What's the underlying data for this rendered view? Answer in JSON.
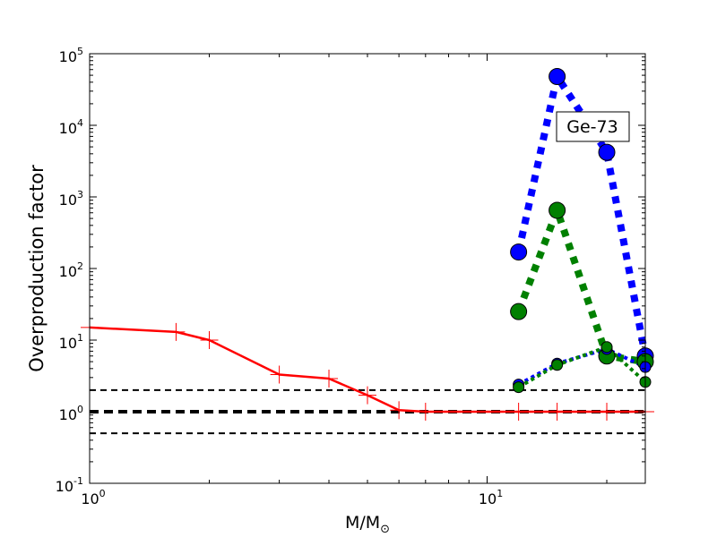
{
  "chart_data": {
    "type": "line",
    "xscale": "log",
    "yscale": "log",
    "xlim": [
      1,
      25
    ],
    "ylim": [
      0.1,
      100000
    ],
    "xlabel_main": "M/M",
    "xlabel_sub": "⊙",
    "ylabel": "Overproduction factor",
    "annotation": "Ge-73",
    "x_ticks": [
      {
        "value": 1,
        "base": "10",
        "exp": "0"
      },
      {
        "value": 10,
        "base": "10",
        "exp": "1"
      }
    ],
    "y_ticks": [
      {
        "value": 0.1,
        "base": "10",
        "exp": "-1"
      },
      {
        "value": 1,
        "base": "10",
        "exp": "0"
      },
      {
        "value": 10,
        "base": "10",
        "exp": "1"
      },
      {
        "value": 100,
        "base": "10",
        "exp": "2"
      },
      {
        "value": 1000,
        "base": "10",
        "exp": "3"
      },
      {
        "value": 10000,
        "base": "10",
        "exp": "4"
      },
      {
        "value": 100000,
        "base": "10",
        "exp": "5"
      }
    ],
    "reference_lines": [
      {
        "y": 2.0,
        "color": "#000000",
        "style": "dashed",
        "weight": "thin"
      },
      {
        "y": 1.0,
        "color": "#000000",
        "style": "dashed",
        "weight": "thick"
      },
      {
        "y": 0.5,
        "color": "#000000",
        "style": "dashed",
        "weight": "thin"
      }
    ],
    "series": [
      {
        "color": "#ff0000",
        "style": "solid",
        "marker": "plus",
        "x": [
          1,
          1.65,
          2,
          3,
          4,
          5,
          6,
          7,
          12,
          15,
          20,
          25
        ],
        "y": [
          15,
          13,
          10,
          3.3,
          2.9,
          1.7,
          1.05,
          1.0,
          1.0,
          1.0,
          1.0,
          1.0
        ]
      },
      {
        "color": "#0000ff",
        "style": "dotted-thick",
        "marker": "circle-large",
        "x": [
          12,
          15,
          20,
          25
        ],
        "y": [
          170,
          48000,
          4200,
          6
        ]
      },
      {
        "color": "#008000",
        "style": "dotted-thick",
        "marker": "circle-large",
        "x": [
          12,
          15,
          20,
          25
        ],
        "y": [
          25,
          650,
          6,
          5
        ]
      },
      {
        "color": "#0000ff",
        "style": "dotted-medium",
        "marker": "circle-small",
        "x": [
          12,
          15,
          20,
          25
        ],
        "y": [
          2.4,
          4.7,
          7.5,
          4.2
        ]
      },
      {
        "color": "#008000",
        "style": "dotted-medium",
        "marker": "circle-small",
        "x": [
          12,
          15,
          20,
          25
        ],
        "y": [
          2.2,
          4.5,
          8.0,
          2.6
        ]
      }
    ]
  }
}
